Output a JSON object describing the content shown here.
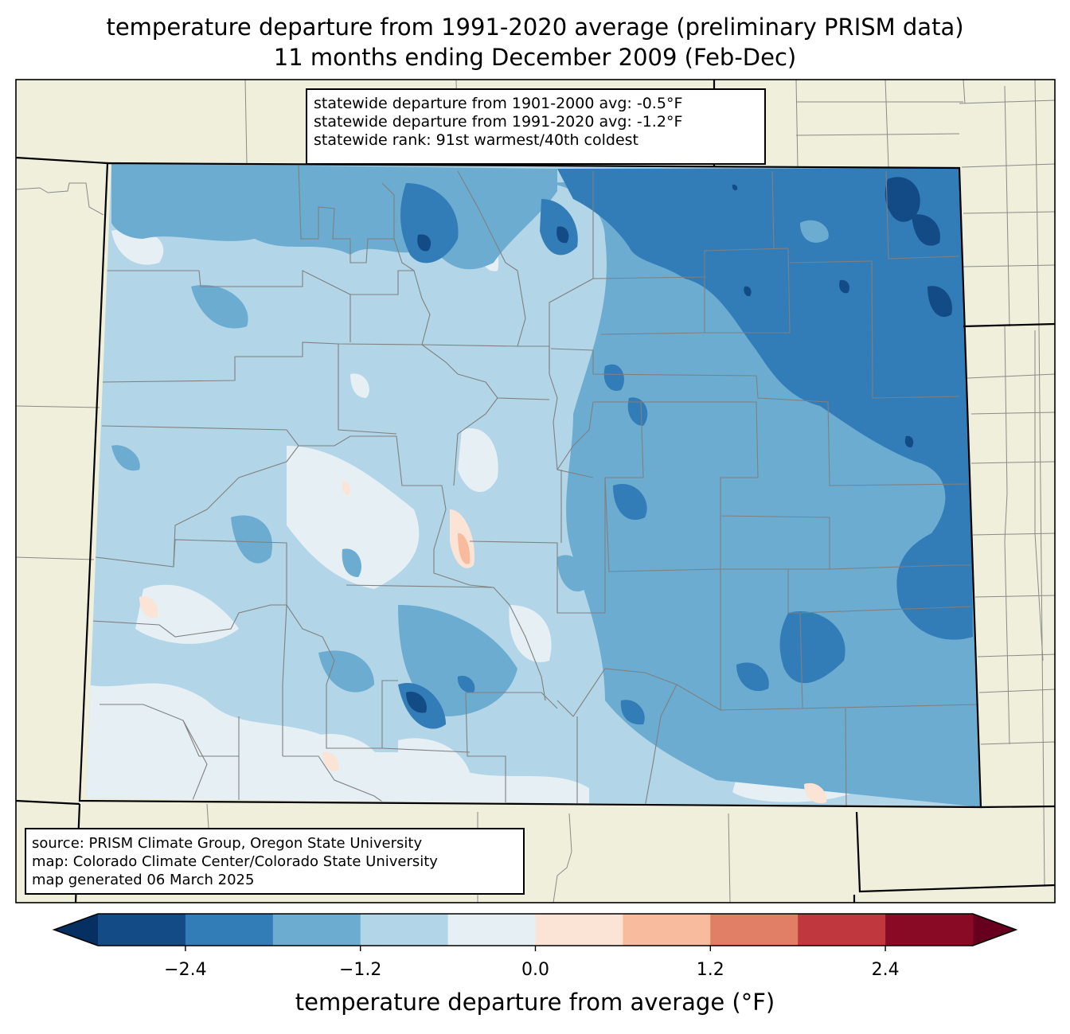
{
  "title": {
    "line1": "temperature departure from 1991-2020 average (preliminary PRISM data)",
    "line2": "11 months ending December 2009 (Feb-Dec)"
  },
  "stats": {
    "line1": "statewide departure from 1901-2000 avg: -0.5°F",
    "line2": "statewide departure from 1991-2020 avg: -1.2°F",
    "line3": "statewide rank: 91st warmest/40th coldest"
  },
  "source": {
    "line1": "source: PRISM Climate Group, Oregon State University",
    "line2": "map: Colorado Climate Center/Colorado State University",
    "line3": "map generated 06 March 2025"
  },
  "colorbar": {
    "label": "temperature departure from average (°F)",
    "min": -3.0,
    "max": 3.0,
    "step": 0.6,
    "ticks": [
      {
        "value": -2.4,
        "label": "−2.4"
      },
      {
        "value": -1.2,
        "label": "−1.2"
      },
      {
        "value": 0.0,
        "label": "0.0"
      },
      {
        "value": 1.2,
        "label": "1.2"
      },
      {
        "value": 2.4,
        "label": "2.4"
      }
    ],
    "colors": [
      "#053061",
      "#134b87",
      "#327db7",
      "#6bacd0",
      "#b2d5e7",
      "#e5eff4",
      "#fbe4d6",
      "#f8bb9e",
      "#e17e66",
      "#c0383e",
      "#880a25",
      "#67001f"
    ]
  },
  "map_colors": {
    "land_outside": "#efefdb",
    "county_lines": "#808080",
    "state_lines": "#000000"
  }
}
